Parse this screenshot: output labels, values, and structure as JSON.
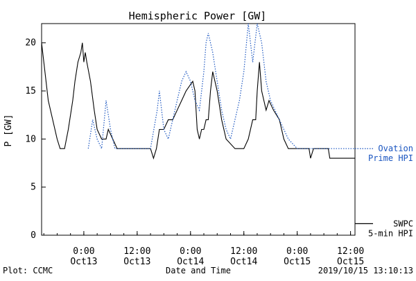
{
  "chart_data": {
    "type": "line",
    "title": "Hemispheric Power [GW]",
    "xlabel": "Date and Time",
    "ylabel": "P [GW]",
    "xlim": [
      "2019-10-12 14:30",
      "2019-10-15 13:00"
    ],
    "ylim": [
      0,
      22
    ],
    "yticks": [
      0,
      5,
      10,
      15,
      20
    ],
    "xticks": [
      {
        "x": "2019-10-13 00:00",
        "time": "0:00",
        "date": "Oct13"
      },
      {
        "x": "2019-10-13 12:00",
        "time": "12:00",
        "date": "Oct13"
      },
      {
        "x": "2019-10-14 00:00",
        "time": "0:00",
        "date": "Oct14"
      },
      {
        "x": "2019-10-14 12:00",
        "time": "12:00",
        "date": "Oct14"
      },
      {
        "x": "2019-10-15 00:00",
        "time": "0:00",
        "date": "Oct15"
      },
      {
        "x": "2019-10-15 12:00",
        "time": "12:00",
        "date": "Oct15"
      }
    ],
    "grid": false,
    "legend_position": "right",
    "series": [
      {
        "name": "SWPC 5-min HPI",
        "legend_lines": [
          "SWPC",
          "5-min HPI"
        ],
        "style": "solid",
        "color": "#000000",
        "points": [
          [
            "2019-10-12 14:30",
            20
          ],
          [
            "2019-10-12 15:00",
            18
          ],
          [
            "2019-10-12 16:00",
            14
          ],
          [
            "2019-10-12 17:00",
            12
          ],
          [
            "2019-10-12 18:00",
            10
          ],
          [
            "2019-10-12 18:40",
            9
          ],
          [
            "2019-10-12 19:40",
            9
          ],
          [
            "2019-10-12 20:30",
            11
          ],
          [
            "2019-10-12 21:30",
            14
          ],
          [
            "2019-10-12 22:00",
            16
          ],
          [
            "2019-10-12 22:40",
            18
          ],
          [
            "2019-10-12 23:20",
            19
          ],
          [
            "2019-10-12 23:40",
            20
          ],
          [
            "2019-10-13 00:00",
            18
          ],
          [
            "2019-10-13 00:20",
            19
          ],
          [
            "2019-10-13 00:40",
            18
          ],
          [
            "2019-10-13 01:30",
            16
          ],
          [
            "2019-10-13 02:20",
            13
          ],
          [
            "2019-10-13 03:00",
            11
          ],
          [
            "2019-10-13 04:00",
            10
          ],
          [
            "2019-10-13 05:00",
            10
          ],
          [
            "2019-10-13 05:30",
            11
          ],
          [
            "2019-10-13 06:30",
            10
          ],
          [
            "2019-10-13 07:30",
            9
          ],
          [
            "2019-10-13 09:00",
            9
          ],
          [
            "2019-10-13 13:00",
            9
          ],
          [
            "2019-10-13 15:00",
            9
          ],
          [
            "2019-10-13 15:40",
            8
          ],
          [
            "2019-10-13 16:20",
            9
          ],
          [
            "2019-10-13 17:00",
            11
          ],
          [
            "2019-10-13 18:00",
            11
          ],
          [
            "2019-10-13 19:00",
            12
          ],
          [
            "2019-10-13 20:00",
            12
          ],
          [
            "2019-10-13 21:00",
            13
          ],
          [
            "2019-10-13 22:00",
            14
          ],
          [
            "2019-10-13 23:00",
            15
          ],
          [
            "2019-10-14 00:30",
            16
          ],
          [
            "2019-10-14 01:00",
            15
          ],
          [
            "2019-10-14 01:30",
            11
          ],
          [
            "2019-10-14 02:00",
            10
          ],
          [
            "2019-10-14 02:30",
            11
          ],
          [
            "2019-10-14 03:00",
            11
          ],
          [
            "2019-10-14 03:30",
            12
          ],
          [
            "2019-10-14 04:00",
            12
          ],
          [
            "2019-10-14 04:30",
            15
          ],
          [
            "2019-10-14 05:00",
            17
          ],
          [
            "2019-10-14 06:00",
            15
          ],
          [
            "2019-10-14 07:00",
            12
          ],
          [
            "2019-10-14 08:00",
            10
          ],
          [
            "2019-10-14 10:00",
            9
          ],
          [
            "2019-10-14 12:00",
            9
          ],
          [
            "2019-10-14 13:00",
            10
          ],
          [
            "2019-10-14 14:00",
            12
          ],
          [
            "2019-10-14 14:40",
            12
          ],
          [
            "2019-10-14 15:00",
            15
          ],
          [
            "2019-10-14 15:30",
            18
          ],
          [
            "2019-10-14 16:00",
            15
          ],
          [
            "2019-10-14 17:00",
            13
          ],
          [
            "2019-10-14 17:40",
            14
          ],
          [
            "2019-10-14 18:40",
            13
          ],
          [
            "2019-10-14 20:00",
            12
          ],
          [
            "2019-10-14 20:30",
            11
          ],
          [
            "2019-10-14 21:00",
            10
          ],
          [
            "2019-10-14 22:00",
            9
          ],
          [
            "2019-10-15 01:00",
            9
          ],
          [
            "2019-10-15 02:40",
            9
          ],
          [
            "2019-10-15 03:00",
            8
          ],
          [
            "2019-10-15 03:40",
            9
          ],
          [
            "2019-10-15 07:00",
            9
          ],
          [
            "2019-10-15 07:20",
            8
          ],
          [
            "2019-10-15 13:00",
            8
          ]
        ]
      },
      {
        "name": "Ovation Prime HPI",
        "legend_lines": [
          "Ovation",
          "Prime HPI"
        ],
        "style": "dotted",
        "color": "#1a55c0",
        "points": [
          [
            "2019-10-13 01:00",
            9
          ],
          [
            "2019-10-13 02:00",
            12
          ],
          [
            "2019-10-13 03:00",
            10
          ],
          [
            "2019-10-13 04:00",
            9
          ],
          [
            "2019-10-13 05:00",
            14
          ],
          [
            "2019-10-13 06:00",
            11
          ],
          [
            "2019-10-13 07:00",
            9
          ],
          [
            "2019-10-13 09:00",
            9
          ],
          [
            "2019-10-13 15:00",
            9
          ],
          [
            "2019-10-13 16:30",
            13
          ],
          [
            "2019-10-13 17:00",
            15
          ],
          [
            "2019-10-13 18:00",
            11
          ],
          [
            "2019-10-13 19:00",
            10
          ],
          [
            "2019-10-13 20:00",
            12
          ],
          [
            "2019-10-13 21:00",
            14
          ],
          [
            "2019-10-13 22:00",
            16
          ],
          [
            "2019-10-13 23:00",
            17
          ],
          [
            "2019-10-14 00:00",
            16
          ],
          [
            "2019-10-14 01:00",
            14
          ],
          [
            "2019-10-14 02:00",
            13
          ],
          [
            "2019-10-14 03:00",
            17
          ],
          [
            "2019-10-14 03:30",
            20
          ],
          [
            "2019-10-14 04:00",
            21
          ],
          [
            "2019-10-14 05:00",
            19
          ],
          [
            "2019-10-14 06:00",
            16
          ],
          [
            "2019-10-14 07:00",
            13
          ],
          [
            "2019-10-14 08:00",
            11
          ],
          [
            "2019-10-14 09:00",
            10
          ],
          [
            "2019-10-14 10:00",
            12
          ],
          [
            "2019-10-14 11:00",
            14
          ],
          [
            "2019-10-14 12:00",
            17
          ],
          [
            "2019-10-14 13:00",
            22
          ],
          [
            "2019-10-14 14:00",
            18
          ],
          [
            "2019-10-14 15:00",
            22
          ],
          [
            "2019-10-14 16:00",
            20
          ],
          [
            "2019-10-14 17:00",
            16
          ],
          [
            "2019-10-14 18:00",
            14
          ],
          [
            "2019-10-14 19:00",
            13
          ],
          [
            "2019-10-14 20:00",
            12
          ],
          [
            "2019-10-14 21:00",
            11
          ],
          [
            "2019-10-14 22:00",
            10
          ],
          [
            "2019-10-15 00:00",
            9
          ],
          [
            "2019-10-15 06:00",
            9
          ],
          [
            "2019-10-15 13:00",
            9
          ]
        ]
      }
    ]
  },
  "footer": {
    "plot_credit": "Plot: CCMC",
    "timestamp": "2019/10/15 13:10:13"
  }
}
